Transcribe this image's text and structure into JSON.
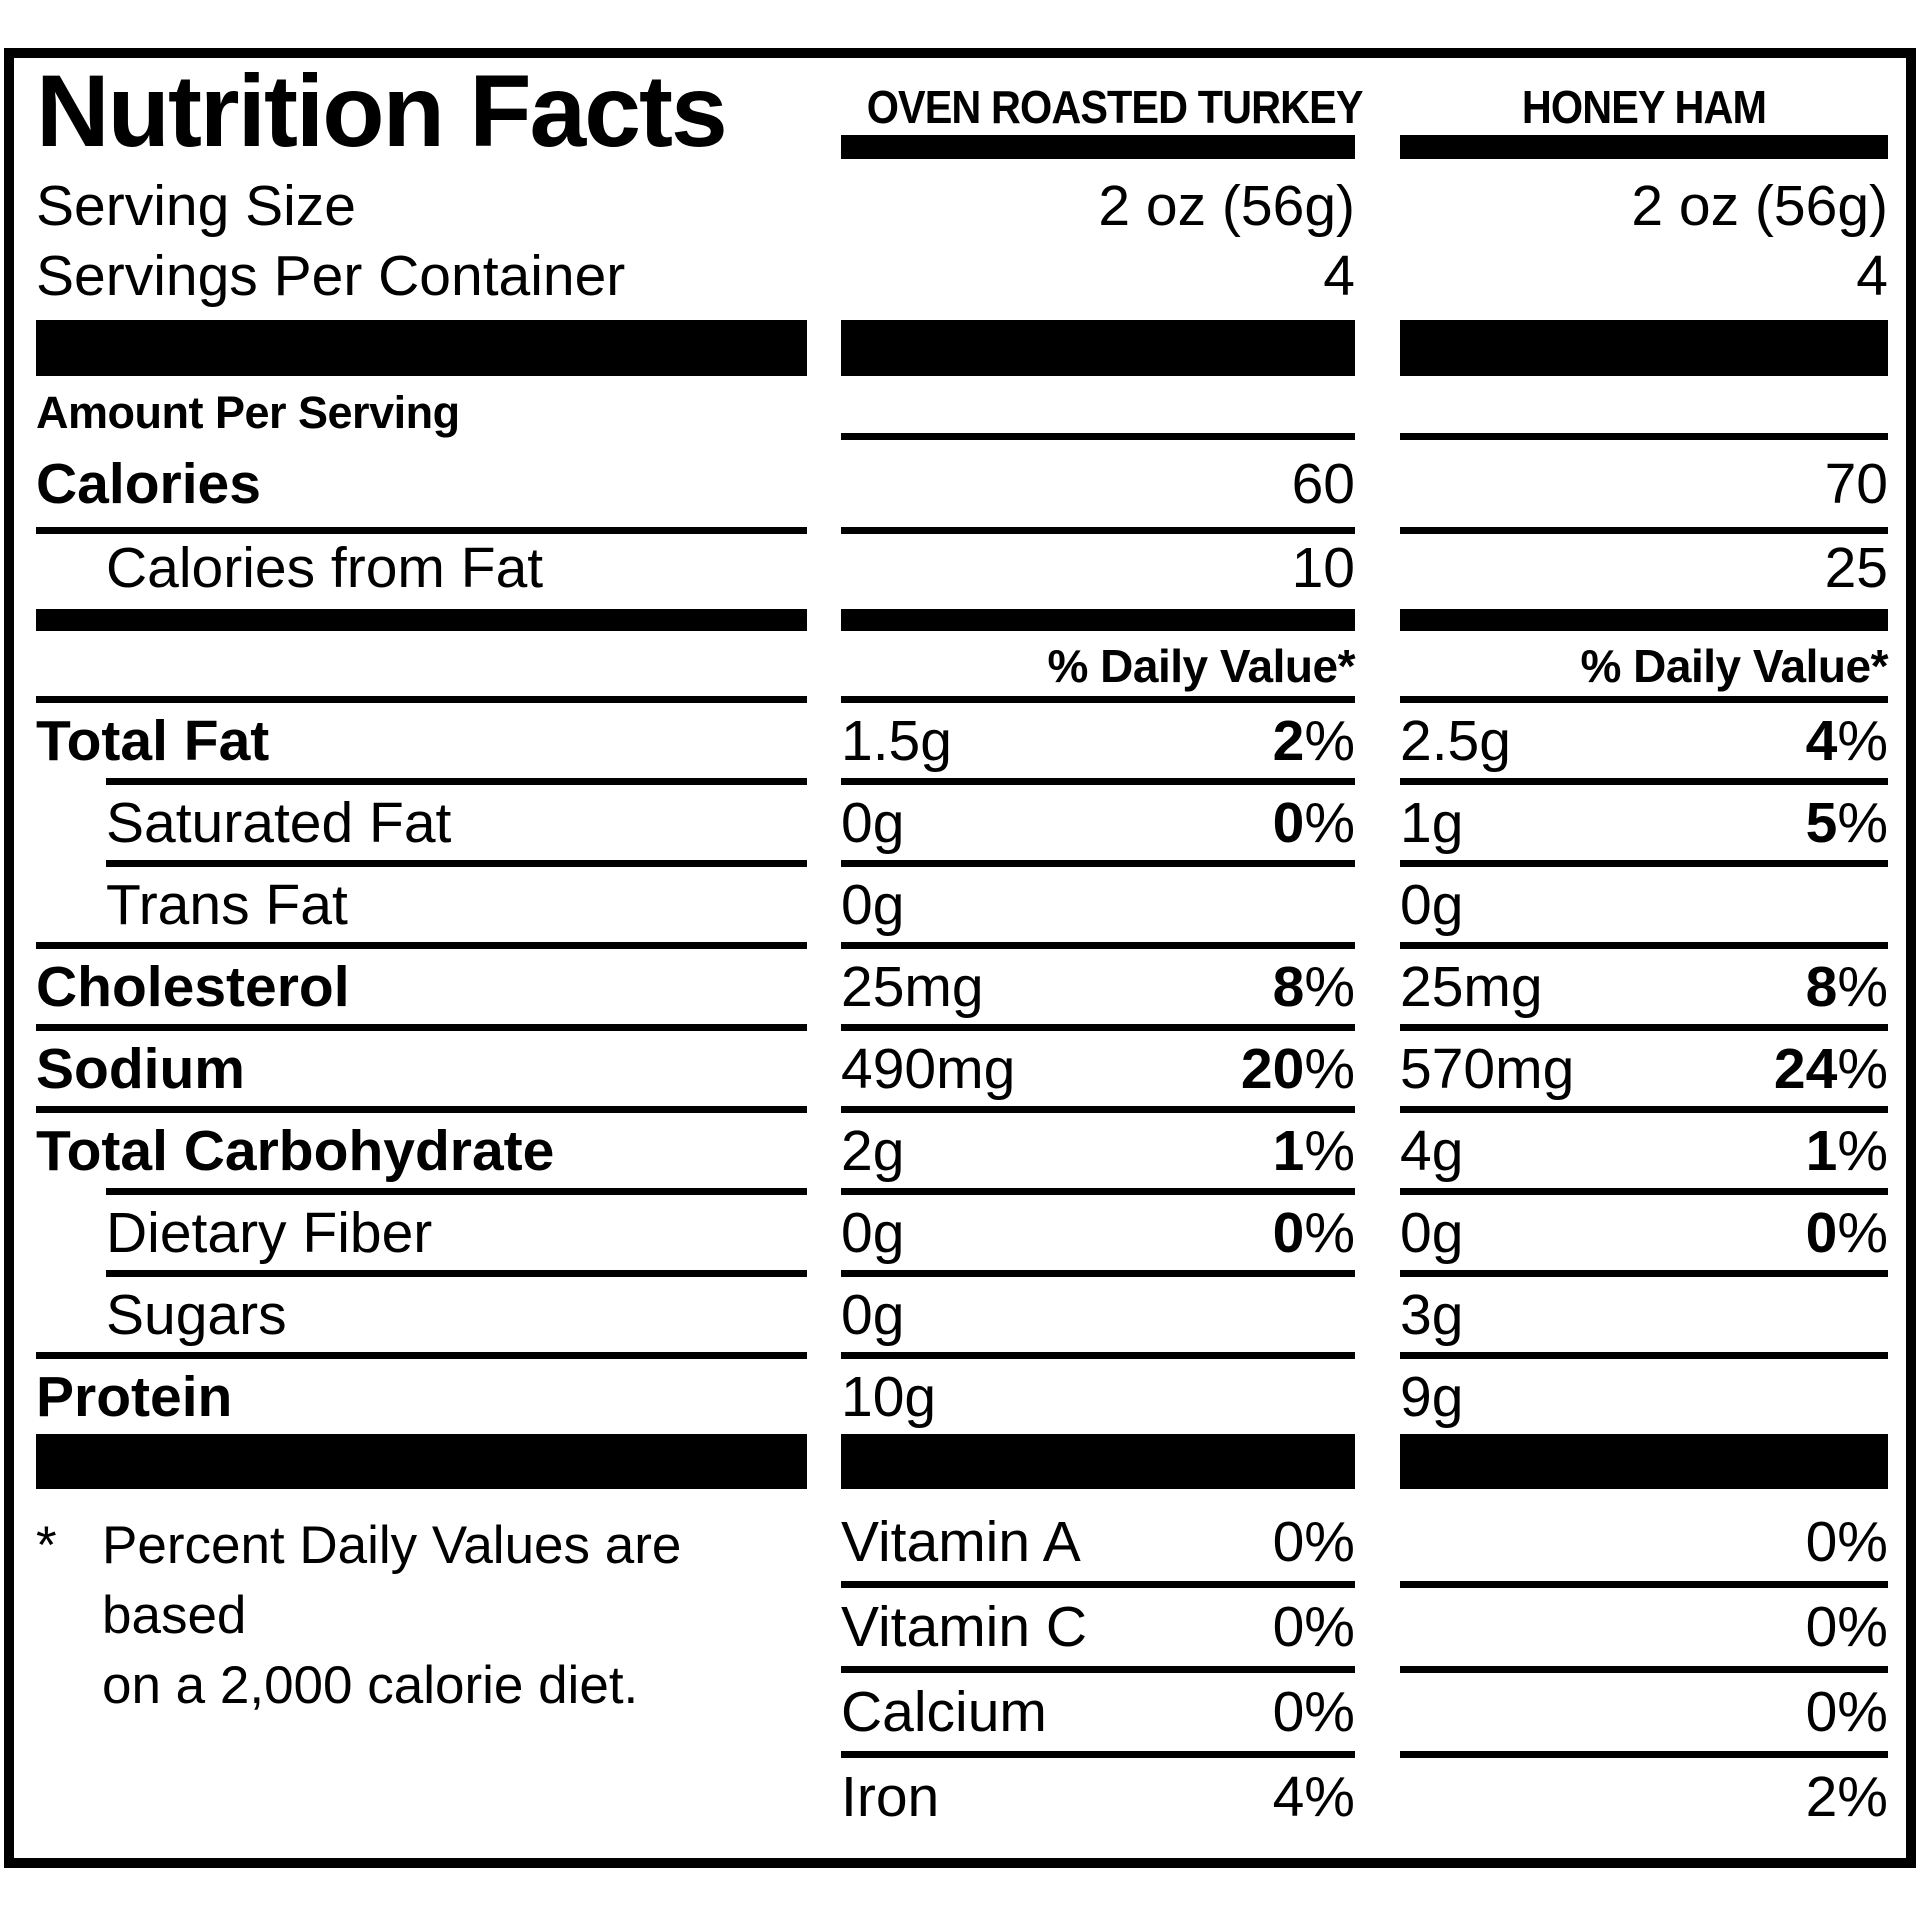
{
  "title": "Nutrition Facts",
  "serving": {
    "size_label": "Serving Size",
    "per_container_label": "Servings Per Container"
  },
  "products": [
    {
      "name": "OVEN ROASTED TURKEY",
      "serving_size": "2 oz (56g)",
      "servings_per_container": "4"
    },
    {
      "name": "HONEY HAM",
      "serving_size": "2 oz (56g)",
      "servings_per_container": "4"
    }
  ],
  "amount_per_serving_label": "Amount Per Serving",
  "calories": {
    "label": "Calories",
    "values": [
      "60",
      "70"
    ]
  },
  "calories_from_fat": {
    "label": "Calories from Fat",
    "values": [
      "10",
      "25"
    ]
  },
  "daily_value_header": "% Daily Value*",
  "nutrients": [
    {
      "name": "Total Fat",
      "turkey": {
        "amount": "1.5g",
        "dv": "2",
        "pct": "%"
      },
      "ham": {
        "amount": "2.5g",
        "dv": "4",
        "pct": "%"
      }
    },
    {
      "name": "Saturated Fat",
      "turkey": {
        "amount": "0g",
        "dv": "0",
        "pct": "%"
      },
      "ham": {
        "amount": "1g",
        "dv": "5",
        "pct": "%"
      }
    },
    {
      "name": "Trans Fat",
      "turkey": {
        "amount": "0g",
        "dv": "",
        "pct": ""
      },
      "ham": {
        "amount": "0g",
        "dv": "",
        "pct": ""
      }
    },
    {
      "name": "Cholesterol",
      "turkey": {
        "amount": "25mg",
        "dv": "8",
        "pct": "%"
      },
      "ham": {
        "amount": "25mg",
        "dv": "8",
        "pct": "%"
      }
    },
    {
      "name": "Sodium",
      "turkey": {
        "amount": "490mg",
        "dv": "20",
        "pct": "%"
      },
      "ham": {
        "amount": "570mg",
        "dv": "24",
        "pct": "%"
      }
    },
    {
      "name": "Total Carbohydrate",
      "turkey": {
        "amount": "2g",
        "dv": "1",
        "pct": "%"
      },
      "ham": {
        "amount": "4g",
        "dv": "1",
        "pct": "%"
      }
    },
    {
      "name": "Dietary Fiber",
      "turkey": {
        "amount": "0g",
        "dv": "0",
        "pct": "%"
      },
      "ham": {
        "amount": "0g",
        "dv": "0",
        "pct": "%"
      }
    },
    {
      "name": "Sugars",
      "turkey": {
        "amount": "0g",
        "dv": "",
        "pct": ""
      },
      "ham": {
        "amount": "3g",
        "dv": "",
        "pct": ""
      }
    },
    {
      "name": "Protein",
      "turkey": {
        "amount": "10g",
        "dv": "",
        "pct": ""
      },
      "ham": {
        "amount": "9g",
        "dv": "",
        "pct": ""
      }
    }
  ],
  "footnote": {
    "marker": "*",
    "line1": "Percent Daily Values are based",
    "line2": "on a 2,000 calorie diet."
  },
  "vitamins": [
    {
      "name": "Vitamin A",
      "turkey": "0%",
      "ham": "0%"
    },
    {
      "name": "Vitamin C",
      "turkey": "0%",
      "ham": "0%"
    },
    {
      "name": "Calcium",
      "turkey": "0%",
      "ham": "0%"
    },
    {
      "name": "Iron",
      "turkey": "4%",
      "ham": "2%"
    }
  ]
}
